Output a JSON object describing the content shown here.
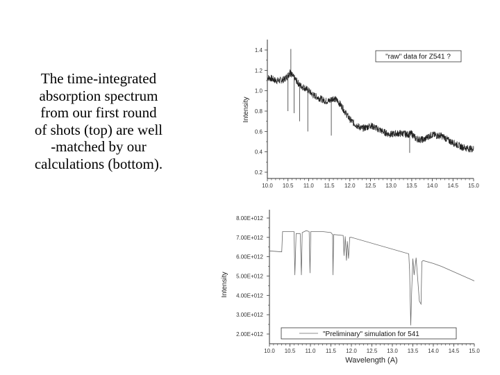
{
  "caption": {
    "lines": [
      "The time-integrated",
      "absorption spectrum",
      "from our first round",
      "of shots (top) are well",
      "-matched by our",
      "calculations (bottom)."
    ]
  },
  "chart_data": [
    {
      "type": "line",
      "title": "\"raw\" data for Z541 ?",
      "legend": "\"raw\" data for Z541 ?",
      "xlabel": "",
      "ylabel": "Intensity",
      "xlim": [
        10.0,
        15.0
      ],
      "ylim": [
        0.15,
        1.5
      ],
      "xticks": [
        "10.0",
        "10.5",
        "11.0",
        "11.5",
        "12.0",
        "12.5",
        "13.0",
        "13.5",
        "14.0",
        "14.5",
        "15.0"
      ],
      "yticks": [
        "0.2",
        "0.4",
        "0.6",
        "0.8",
        "1.0",
        "1.2",
        "1.4"
      ],
      "grid": false,
      "series": [
        {
          "name": "raw data Z541",
          "x": [
            10.0,
            10.1,
            10.2,
            10.3,
            10.4,
            10.5,
            10.55,
            10.6,
            10.7,
            10.8,
            10.9,
            11.0,
            11.1,
            11.2,
            11.3,
            11.4,
            11.5,
            11.6,
            11.7,
            11.8,
            11.9,
            12.0,
            12.1,
            12.2,
            12.3,
            12.4,
            12.5,
            12.6,
            12.7,
            12.8,
            12.9,
            13.0,
            13.1,
            13.2,
            13.3,
            13.4,
            13.5,
            13.6,
            13.7,
            13.8,
            13.9,
            14.0,
            14.1,
            14.2,
            14.3,
            14.4,
            14.5,
            14.6,
            14.7,
            14.8,
            14.9,
            15.0
          ],
          "values": [
            1.13,
            1.12,
            1.1,
            1.1,
            1.11,
            1.15,
            1.18,
            1.15,
            1.1,
            1.05,
            1.03,
            1.0,
            0.96,
            0.94,
            0.92,
            0.9,
            0.9,
            0.93,
            0.9,
            0.85,
            0.78,
            0.72,
            0.68,
            0.65,
            0.63,
            0.64,
            0.66,
            0.64,
            0.62,
            0.6,
            0.58,
            0.57,
            0.58,
            0.58,
            0.58,
            0.57,
            0.58,
            0.53,
            0.52,
            0.52,
            0.55,
            0.57,
            0.56,
            0.56,
            0.54,
            0.51,
            0.49,
            0.47,
            0.45,
            0.44,
            0.43,
            0.43
          ]
        }
      ],
      "annotations": [
        {
          "x": 10.57,
          "y": 1.41,
          "note": "spike"
        },
        {
          "x": 10.5,
          "y": 0.8,
          "note": "absorption dip"
        },
        {
          "x": 10.65,
          "y": 0.78,
          "note": "absorption dip"
        },
        {
          "x": 10.78,
          "y": 0.7,
          "note": "absorption dip"
        },
        {
          "x": 10.98,
          "y": 0.6,
          "note": "absorption dip"
        },
        {
          "x": 11.55,
          "y": 0.56,
          "note": "absorption dip"
        },
        {
          "x": 13.45,
          "y": 0.39,
          "note": "absorption dip"
        }
      ]
    },
    {
      "type": "line",
      "title": "\"Preliminary\" simulation for 541",
      "legend": "\"Preliminary\" simulation for 541",
      "xlabel": "Wavelength (A)",
      "ylabel": "Intensity",
      "xlim": [
        10.0,
        15.0
      ],
      "ylim": [
        1500000000000.0,
        8200000000000.0
      ],
      "xticks": [
        "10.0",
        "10.5",
        "11.0",
        "11.5",
        "12.0",
        "12.5",
        "13.0",
        "13.5",
        "14.0",
        "14.5",
        "15.0"
      ],
      "yticks": [
        "2.00E+012",
        "3.00E+012",
        "4.00E+012",
        "5.00E+012",
        "6.00E+012",
        "7.00E+012",
        "8.00E+012"
      ],
      "grid": false,
      "series": [
        {
          "name": "Preliminary simulation for 541",
          "x": [
            10.0,
            10.3,
            10.3,
            10.32,
            10.6,
            10.62,
            10.65,
            10.75,
            10.78,
            10.8,
            10.9,
            10.97,
            10.99,
            11.01,
            11.3,
            11.5,
            11.54,
            11.55,
            11.57,
            11.8,
            11.82,
            11.85,
            11.88,
            11.9,
            11.93,
            11.96,
            12.0,
            13.4,
            13.42,
            13.45,
            13.47,
            13.5,
            13.53,
            13.58,
            13.62,
            13.66,
            13.7,
            13.72,
            13.75,
            14.0,
            14.2,
            15.0
          ],
          "values": [
            6300000000000.0,
            6250000000000.0,
            6250000000000.0,
            7300000000000.0,
            7300000000000.0,
            5050000000000.0,
            7200000000000.0,
            7200000000000.0,
            5050000000000.0,
            7250000000000.0,
            7350000000000.0,
            7300000000000.0,
            5150000000000.0,
            7300000000000.0,
            7300000000000.0,
            7250000000000.0,
            7150000000000.0,
            5050000000000.0,
            7150000000000.0,
            7100000000000.0,
            6050000000000.0,
            7050000000000.0,
            5800000000000.0,
            6800000000000.0,
            5900000000000.0,
            7000000000000.0,
            7000000000000.0,
            6150000000000.0,
            5300000000000.0,
            2450000000000.0,
            4100000000000.0,
            5900000000000.0,
            5050000000000.0,
            5950000000000.0,
            4800000000000.0,
            3700000000000.0,
            3550000000000.0,
            5750000000000.0,
            5800000000000.0,
            5650000000000.0,
            5500000000000.0,
            4750000000000.0
          ]
        }
      ]
    }
  ]
}
